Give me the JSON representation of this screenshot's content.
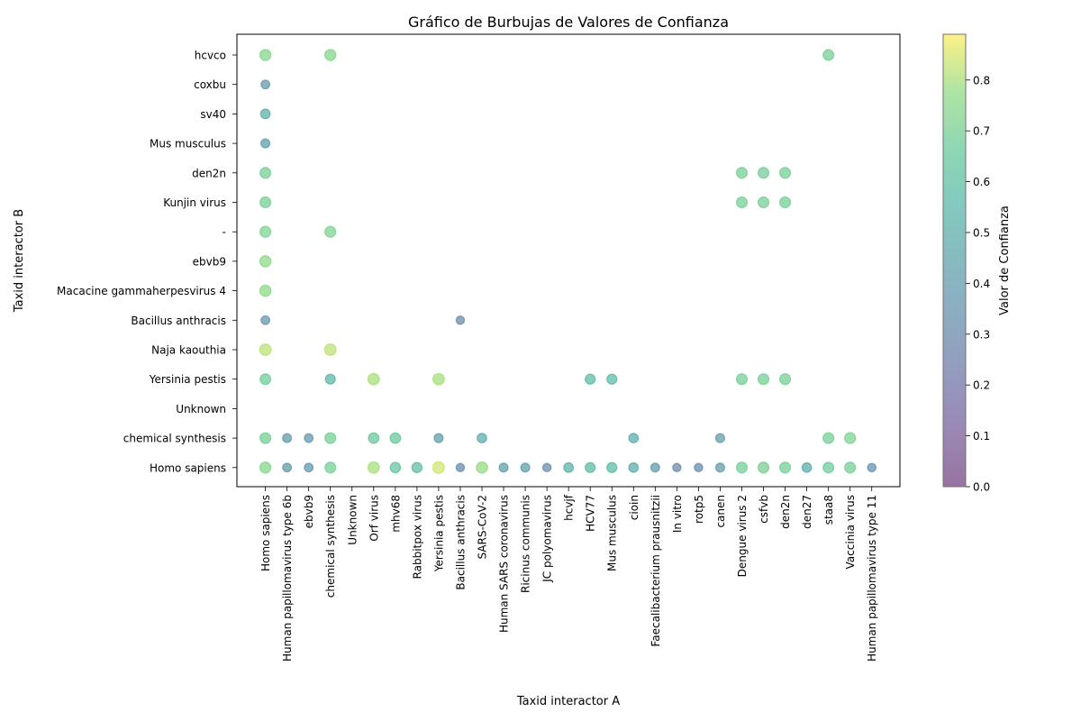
{
  "chart_data": {
    "type": "scatter",
    "title": "Gráfico de Burbujas de Valores de Confianza",
    "xlabel": "Taxid interactor A",
    "ylabel": "Taxid interactor B",
    "colorbar_label": "Valor de Confianza",
    "colorbar_range": [
      0,
      0.89
    ],
    "colorbar_ticks": [
      "0.0",
      "0.1",
      "0.2",
      "0.3",
      "0.4",
      "0.5",
      "0.6",
      "0.7",
      "0.8"
    ],
    "colormap": "viridis",
    "x_categories": [
      "Homo sapiens",
      "Human papillomavirus type 6b",
      "ebvb9",
      "chemical synthesis",
      "Unknown",
      "Orf virus",
      "mhv68",
      "Rabbitpox virus",
      "Yersinia pestis",
      "Bacillus anthracis",
      "SARS-CoV-2",
      "Human SARS coronavirus",
      "Ricinus communis",
      "JC polyomavirus",
      "hcvjf",
      "HCV77",
      "Mus musculus",
      "cioin",
      "Faecalibacterium prausnitzii",
      "In vitro",
      "rotp5",
      "canen",
      "Dengue virus 2",
      "csfvb",
      "den2n",
      "den27",
      "staa8",
      "Vaccinia virus",
      "Human papillomavirus type 11"
    ],
    "y_categories": [
      "Homo sapiens",
      "chemical synthesis",
      "Unknown",
      "Yersinia pestis",
      "Naja kaouthia",
      "Bacillus anthracis",
      "Macacine gammaherpesvirus 4",
      "ebvb9",
      "-",
      "Kunjin virus",
      "den2n",
      "Mus musculus",
      "sv40",
      "coxbu",
      "hcvco"
    ],
    "points": [
      {
        "x": "Homo sapiens",
        "y": "hcvco",
        "value": 0.74
      },
      {
        "x": "chemical synthesis",
        "y": "hcvco",
        "value": 0.74
      },
      {
        "x": "staa8",
        "y": "hcvco",
        "value": 0.7
      },
      {
        "x": "Homo sapiens",
        "y": "coxbu",
        "value": 0.38
      },
      {
        "x": "Homo sapiens",
        "y": "sv40",
        "value": 0.52
      },
      {
        "x": "Homo sapiens",
        "y": "Mus musculus",
        "value": 0.42
      },
      {
        "x": "Homo sapiens",
        "y": "den2n",
        "value": 0.7
      },
      {
        "x": "Dengue virus 2",
        "y": "den2n",
        "value": 0.7
      },
      {
        "x": "csfvb",
        "y": "den2n",
        "value": 0.7
      },
      {
        "x": "den2n",
        "y": "den2n",
        "value": 0.7
      },
      {
        "x": "Homo sapiens",
        "y": "Kunjin virus",
        "value": 0.7
      },
      {
        "x": "Dengue virus 2",
        "y": "Kunjin virus",
        "value": 0.7
      },
      {
        "x": "csfvb",
        "y": "Kunjin virus",
        "value": 0.7
      },
      {
        "x": "den2n",
        "y": "Kunjin virus",
        "value": 0.7
      },
      {
        "x": "Homo sapiens",
        "y": "-",
        "value": 0.72
      },
      {
        "x": "chemical synthesis",
        "y": "-",
        "value": 0.72
      },
      {
        "x": "Homo sapiens",
        "y": "ebvb9",
        "value": 0.76
      },
      {
        "x": "Homo sapiens",
        "y": "Macacine gammaherpesvirus 4",
        "value": 0.76
      },
      {
        "x": "Homo sapiens",
        "y": "Bacillus anthracis",
        "value": 0.38
      },
      {
        "x": "Bacillus anthracis",
        "y": "Bacillus anthracis",
        "value": 0.32
      },
      {
        "x": "Homo sapiens",
        "y": "Naja kaouthia",
        "value": 0.82
      },
      {
        "x": "chemical synthesis",
        "y": "Naja kaouthia",
        "value": 0.82
      },
      {
        "x": "Homo sapiens",
        "y": "Yersinia pestis",
        "value": 0.68
      },
      {
        "x": "chemical synthesis",
        "y": "Yersinia pestis",
        "value": 0.56
      },
      {
        "x": "Orf virus",
        "y": "Yersinia pestis",
        "value": 0.8
      },
      {
        "x": "Yersinia pestis",
        "y": "Yersinia pestis",
        "value": 0.8
      },
      {
        "x": "HCV77",
        "y": "Yersinia pestis",
        "value": 0.58
      },
      {
        "x": "Mus musculus",
        "y": "Yersinia pestis",
        "value": 0.58
      },
      {
        "x": "Dengue virus 2",
        "y": "Yersinia pestis",
        "value": 0.7
      },
      {
        "x": "csfvb",
        "y": "Yersinia pestis",
        "value": 0.7
      },
      {
        "x": "den2n",
        "y": "Yersinia pestis",
        "value": 0.7
      },
      {
        "x": "Homo sapiens",
        "y": "chemical synthesis",
        "value": 0.7
      },
      {
        "x": "Human papillomavirus type 6b",
        "y": "chemical synthesis",
        "value": 0.4
      },
      {
        "x": "ebvb9",
        "y": "chemical synthesis",
        "value": 0.38
      },
      {
        "x": "chemical synthesis",
        "y": "chemical synthesis",
        "value": 0.7
      },
      {
        "x": "Orf virus",
        "y": "chemical synthesis",
        "value": 0.66
      },
      {
        "x": "mhv68",
        "y": "chemical synthesis",
        "value": 0.66
      },
      {
        "x": "Yersinia pestis",
        "y": "chemical synthesis",
        "value": 0.42
      },
      {
        "x": "SARS-CoV-2",
        "y": "chemical synthesis",
        "value": 0.5
      },
      {
        "x": "cioin",
        "y": "chemical synthesis",
        "value": 0.5
      },
      {
        "x": "canen",
        "y": "chemical synthesis",
        "value": 0.42
      },
      {
        "x": "staa8",
        "y": "chemical synthesis",
        "value": 0.7
      },
      {
        "x": "Vaccinia virus",
        "y": "chemical synthesis",
        "value": 0.72
      },
      {
        "x": "Homo sapiens",
        "y": "Homo sapiens",
        "value": 0.74
      },
      {
        "x": "Human papillomavirus type 6b",
        "y": "Homo sapiens",
        "value": 0.38
      },
      {
        "x": "ebvb9",
        "y": "Homo sapiens",
        "value": 0.38
      },
      {
        "x": "chemical synthesis",
        "y": "Homo sapiens",
        "value": 0.7
      },
      {
        "x": "Orf virus",
        "y": "Homo sapiens",
        "value": 0.8
      },
      {
        "x": "mhv68",
        "y": "Homo sapiens",
        "value": 0.64
      },
      {
        "x": "Rabbitpox virus",
        "y": "Homo sapiens",
        "value": 0.6
      },
      {
        "x": "Yersinia pestis",
        "y": "Homo sapiens",
        "value": 0.84
      },
      {
        "x": "Bacillus anthracis",
        "y": "Homo sapiens",
        "value": 0.32
      },
      {
        "x": "SARS-CoV-2",
        "y": "Homo sapiens",
        "value": 0.78
      },
      {
        "x": "Human SARS coronavirus",
        "y": "Homo sapiens",
        "value": 0.42
      },
      {
        "x": "Ricinus communis",
        "y": "Homo sapiens",
        "value": 0.42
      },
      {
        "x": "JC polyomavirus",
        "y": "Homo sapiens",
        "value": 0.32
      },
      {
        "x": "hcvjf",
        "y": "Homo sapiens",
        "value": 0.52
      },
      {
        "x": "HCV77",
        "y": "Homo sapiens",
        "value": 0.58
      },
      {
        "x": "Mus musculus",
        "y": "Homo sapiens",
        "value": 0.58
      },
      {
        "x": "cioin",
        "y": "Homo sapiens",
        "value": 0.5
      },
      {
        "x": "Faecalibacterium prausnitzii",
        "y": "Homo sapiens",
        "value": 0.4
      },
      {
        "x": "In vitro",
        "y": "Homo sapiens",
        "value": 0.32
      },
      {
        "x": "rotp5",
        "y": "Homo sapiens",
        "value": 0.32
      },
      {
        "x": "canen",
        "y": "Homo sapiens",
        "value": 0.42
      },
      {
        "x": "Dengue virus 2",
        "y": "Homo sapiens",
        "value": 0.7
      },
      {
        "x": "csfvb",
        "y": "Homo sapiens",
        "value": 0.7
      },
      {
        "x": "den2n",
        "y": "Homo sapiens",
        "value": 0.7
      },
      {
        "x": "den27",
        "y": "Homo sapiens",
        "value": 0.5
      },
      {
        "x": "staa8",
        "y": "Homo sapiens",
        "value": 0.68
      },
      {
        "x": "Vaccinia virus",
        "y": "Homo sapiens",
        "value": 0.7
      },
      {
        "x": "Human papillomavirus type 11",
        "y": "Homo sapiens",
        "value": 0.34
      }
    ]
  }
}
